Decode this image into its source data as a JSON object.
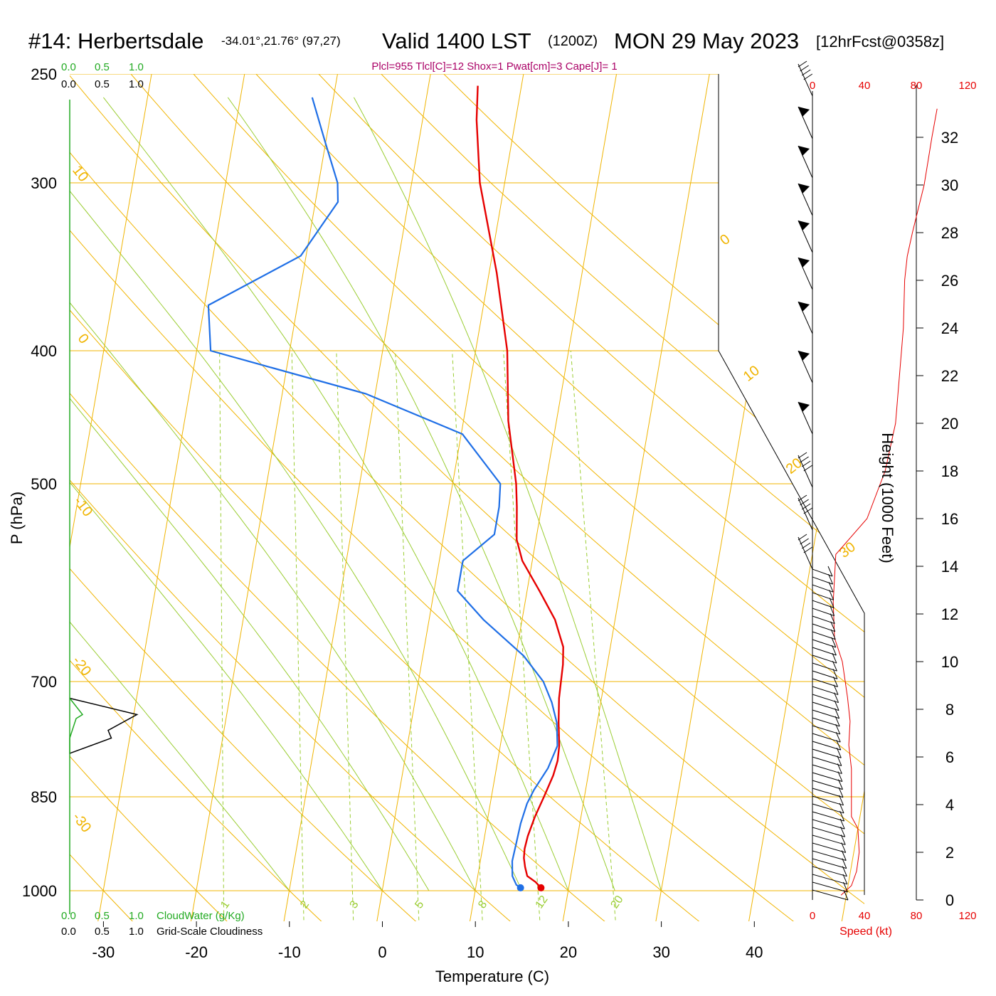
{
  "header": {
    "station": "#14: Herbertsdale",
    "coords": "-34.01°,21.76° (97,27)",
    "valid": "Valid 1400 LST",
    "zulu": "(1200Z)",
    "date": "MON 29 May 2023",
    "forecast": "[12hrFcst@0358z]",
    "indices": "Plcl=955 Tlcl[C]=12 Shox=1 Pwat[cm]=3 Cape[J]= 1"
  },
  "legend": {
    "cloudwater_ticks": [
      "0.0",
      "0.5",
      "1.0"
    ],
    "cloudiness_ticks": [
      "0.0",
      "0.5",
      "1.0"
    ],
    "cloudwater_label": "CloudWater (g/Kg)",
    "cloudiness_label": "Grid-Scale Cloudiness"
  },
  "speed_axis": {
    "ticks": [
      "0",
      "40",
      "80",
      "120"
    ],
    "label": "Speed (kt)"
  },
  "colors": {
    "temperature": "#e60000",
    "dewpoint": "#1f6fe6",
    "isotherm": "#f0b400",
    "dry_adiabat": "#f0b400",
    "moist_adiabat": "#9acd32",
    "mixing_ratio": "#9acd32",
    "cloudwater": "#22aa22",
    "speed": "#e60000",
    "indices": "#aa0066"
  },
  "chart_data": {
    "type": "line",
    "title": "Valid 1400 LST (1200Z) MON 29 May 2023",
    "xlabel": "Temperature (C)",
    "ylabel": "P (hPa)",
    "y2label": "Height (1000 Feet)",
    "x_ticks": [
      -30,
      -20,
      -10,
      0,
      10,
      20,
      30,
      40
    ],
    "pressure_ticks": [
      250,
      300,
      400,
      500,
      700,
      850,
      1000
    ],
    "height_ticks": [
      0,
      2,
      4,
      6,
      8,
      10,
      12,
      14,
      16,
      18,
      20,
      22,
      24,
      26,
      28,
      30,
      32
    ],
    "ylim_hpa": [
      1000,
      250
    ],
    "xlim_c": [
      -34,
      36
    ],
    "isotherm_labels": [
      "10",
      "0",
      "-10",
      "-20",
      "-30",
      "0",
      "10",
      "20",
      "30"
    ],
    "mixing_ratio_labels": [
      "1",
      "2",
      "3",
      "5",
      "8",
      "12",
      "20"
    ],
    "series": [
      {
        "name": "Temperature",
        "p": [
          995,
          985,
          975,
          960,
          945,
          930,
          910,
          880,
          850,
          820,
          800,
          780,
          750,
          720,
          700,
          680,
          660,
          630,
          600,
          570,
          550,
          520,
          500,
          450,
          400,
          350,
          300,
          270,
          255
        ],
        "t": [
          17.0,
          16.3,
          15.3,
          14.9,
          14.6,
          14.5,
          14.6,
          15.0,
          15.6,
          16.2,
          16.4,
          16.3,
          15.8,
          15.4,
          15.3,
          15.2,
          14.9,
          13.5,
          11.3,
          8.9,
          7.9,
          7.3,
          6.8,
          4.8,
          3.4,
          0.8,
          -2.7,
          -4.2,
          -4.7
        ]
      },
      {
        "name": "Dewpoint",
        "p": [
          995,
          990,
          975,
          950,
          920,
          890,
          860,
          840,
          810,
          780,
          750,
          725,
          700,
          670,
          630,
          600,
          570,
          545,
          520,
          500,
          460,
          430,
          400,
          370,
          340,
          310,
          300,
          280,
          260
        ],
        "t": [
          14.8,
          14.3,
          13.7,
          13.4,
          13.5,
          13.6,
          13.9,
          14.4,
          15.5,
          16.1,
          15.6,
          14.7,
          13.4,
          10.8,
          5.8,
          2.5,
          2.5,
          5.4,
          5.4,
          5.1,
          0.1,
          -11.0,
          -28.5,
          -29.6,
          -20.6,
          -17.6,
          -18.0,
          -20.1,
          -22.3
        ]
      }
    ],
    "cloud_water_gkg": {
      "p": [
        720,
        740,
        745,
        770,
        790
      ],
      "values": [
        0.0,
        0.2,
        0.1,
        0.0,
        0.0
      ]
    },
    "cloudiness": {
      "p": [
        720,
        740,
        760,
        770,
        790
      ],
      "values": [
        0.0,
        1.05,
        0.6,
        0.65,
        0.0
      ]
    },
    "wind_speed_kt": {
      "height_kft": [
        0.2,
        0.6,
        1.2,
        2.0,
        3.0,
        3.5,
        4.5,
        5.5,
        6.5,
        7.5,
        8.5,
        10.0,
        11.0,
        12.5,
        13.5,
        14.5,
        16,
        18,
        20,
        22,
        24,
        26,
        27,
        28,
        30,
        32,
        33.2
      ],
      "values": [
        22,
        30,
        34,
        36,
        35,
        30,
        30,
        30,
        28,
        29,
        27,
        23,
        17,
        16,
        17,
        18,
        42,
        56,
        64,
        67,
        70,
        71,
        73,
        77,
        86,
        92,
        96
      ]
    }
  }
}
